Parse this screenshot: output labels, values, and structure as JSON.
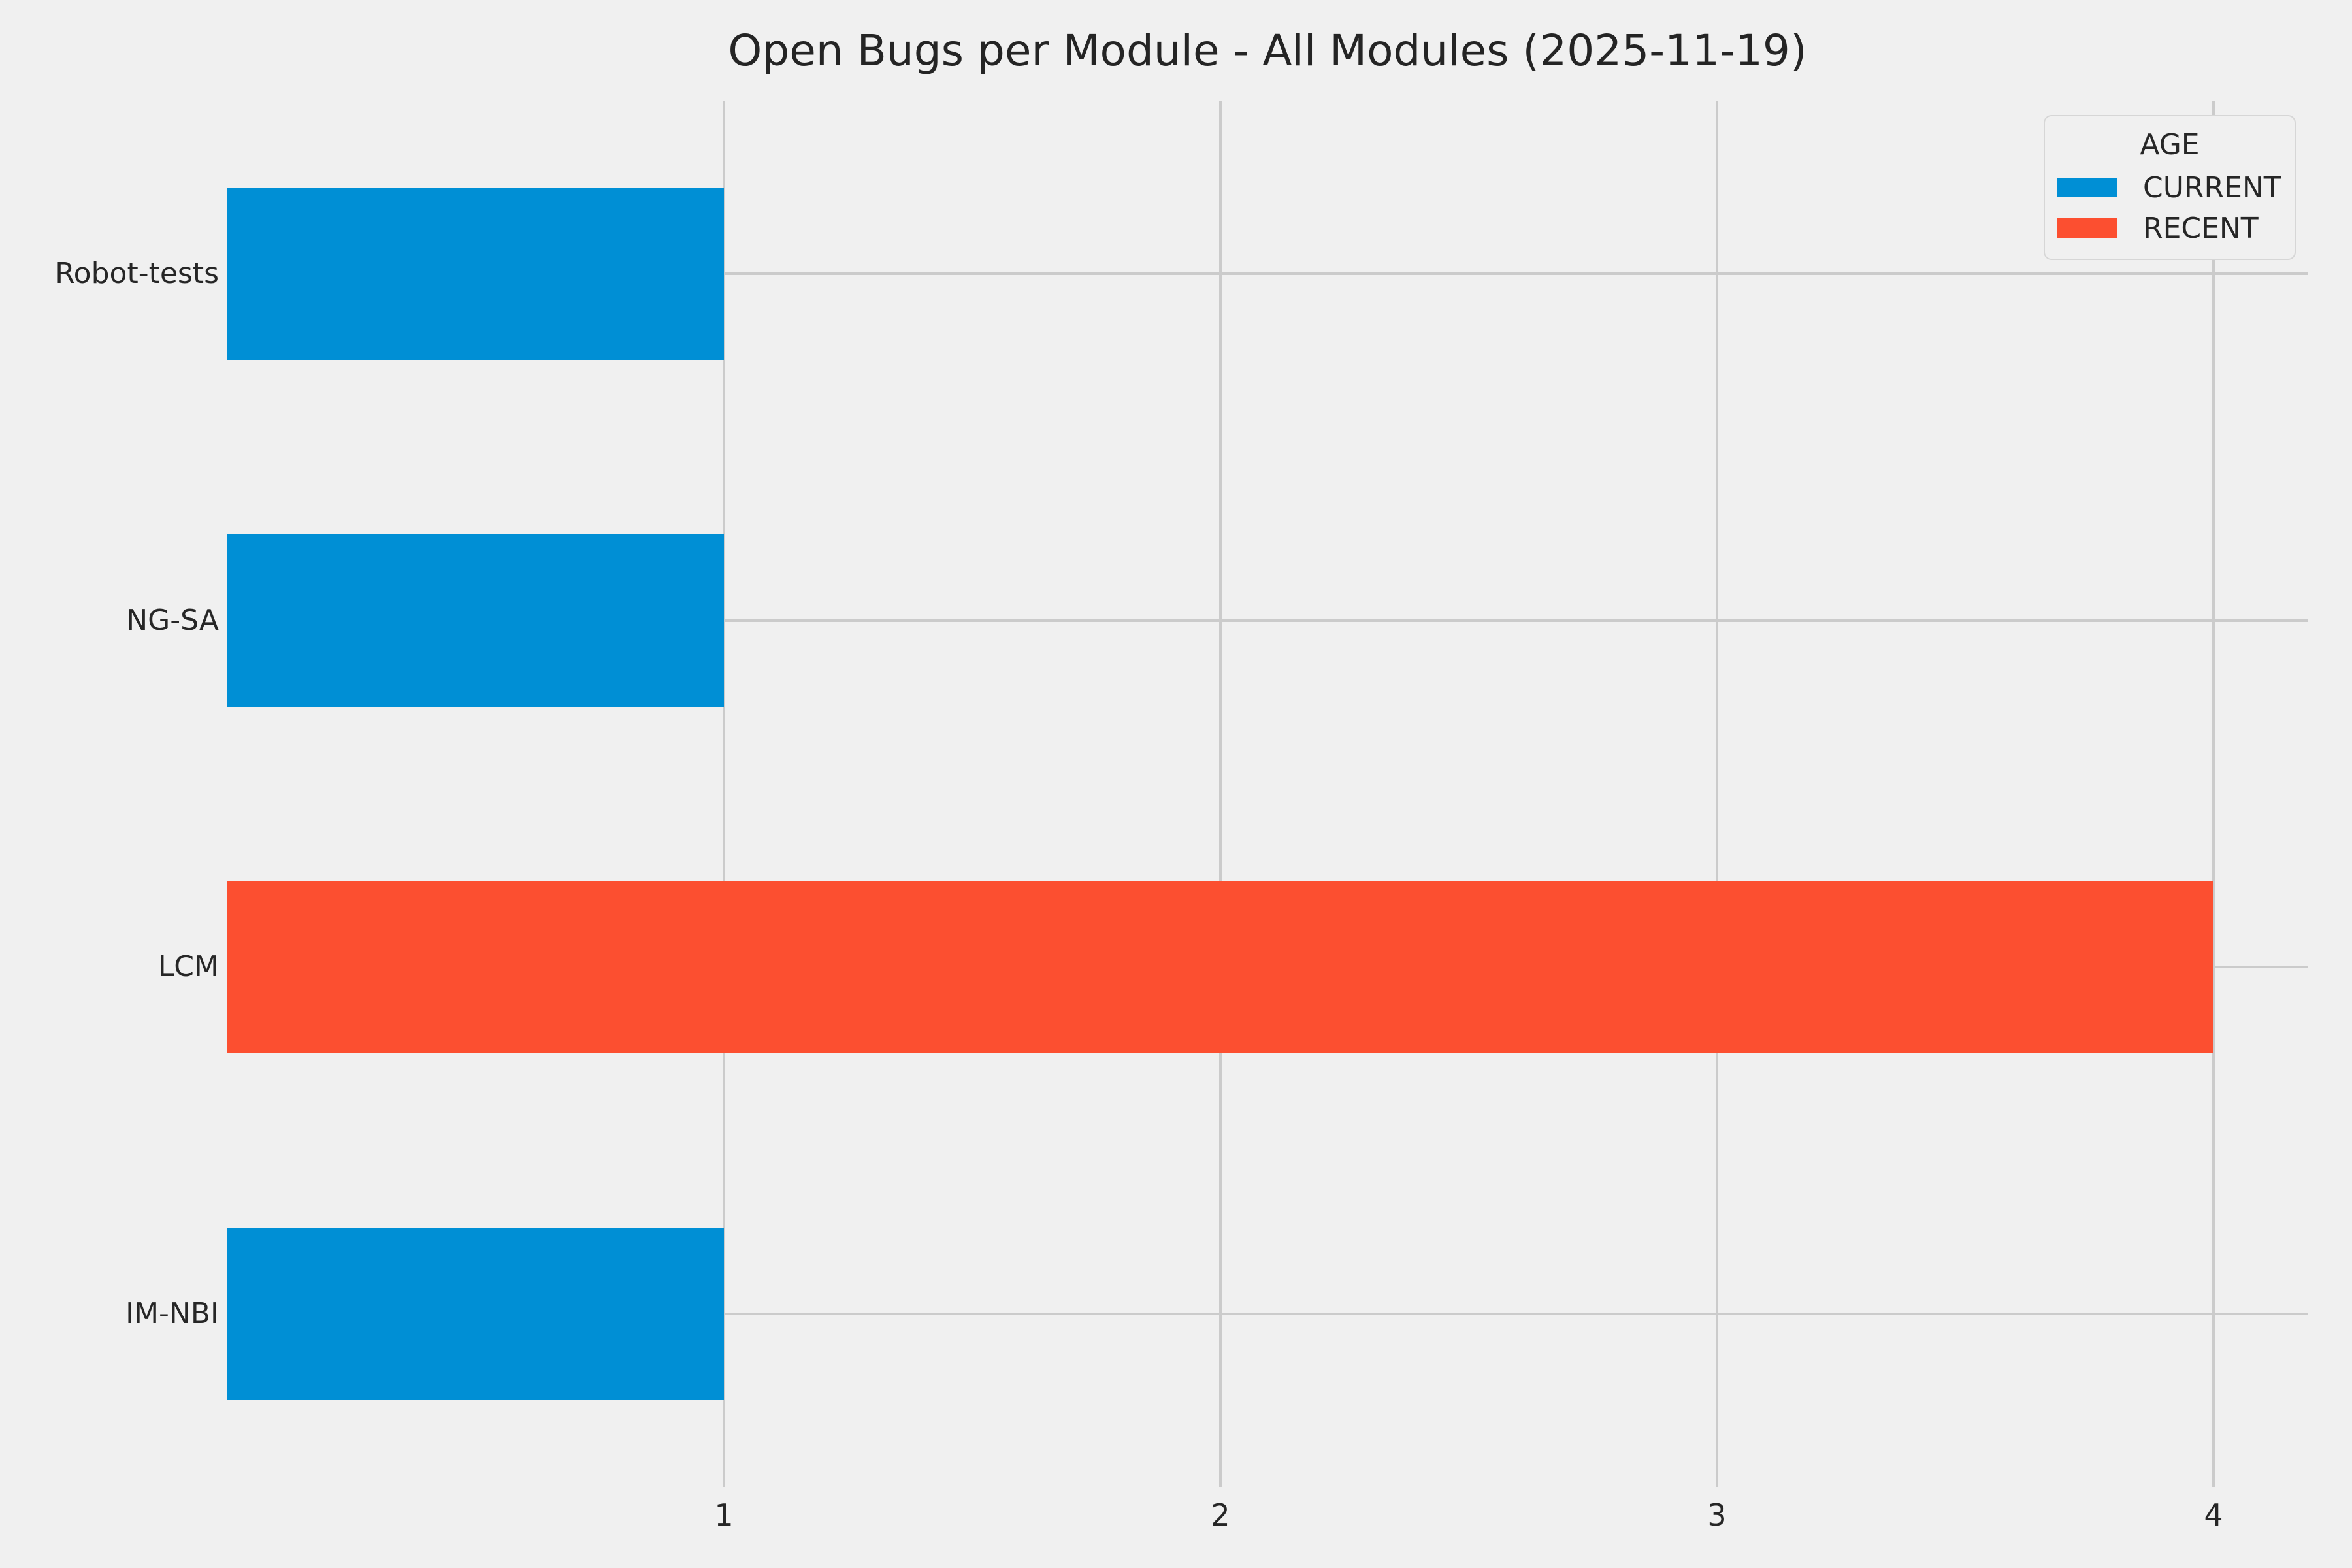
{
  "chart_data": {
    "type": "bar",
    "orientation": "horizontal",
    "title": "Open Bugs per Module - All Modules (2025-11-19)",
    "categories": [
      "Robot-tests",
      "NG-SA",
      "LCM",
      "IM-NBI"
    ],
    "values": [
      1,
      1,
      4,
      1
    ],
    "series_by_bar": [
      "CURRENT",
      "CURRENT",
      "RECENT",
      "CURRENT"
    ],
    "x_ticks": [
      "1",
      "2",
      "3",
      "4"
    ],
    "xlim": [
      0,
      4.19
    ],
    "grid": true,
    "legend": {
      "title": "AGE",
      "position": "upper right",
      "entries": [
        {
          "label": "CURRENT",
          "color": "#008fd5"
        },
        {
          "label": "RECENT",
          "color": "#fc4f30"
        }
      ]
    },
    "colors": {
      "CURRENT": "#008fd5",
      "RECENT": "#fc4f30",
      "background": "#f0f0f0",
      "grid": "#cbcbcb",
      "text": "#262626"
    }
  }
}
